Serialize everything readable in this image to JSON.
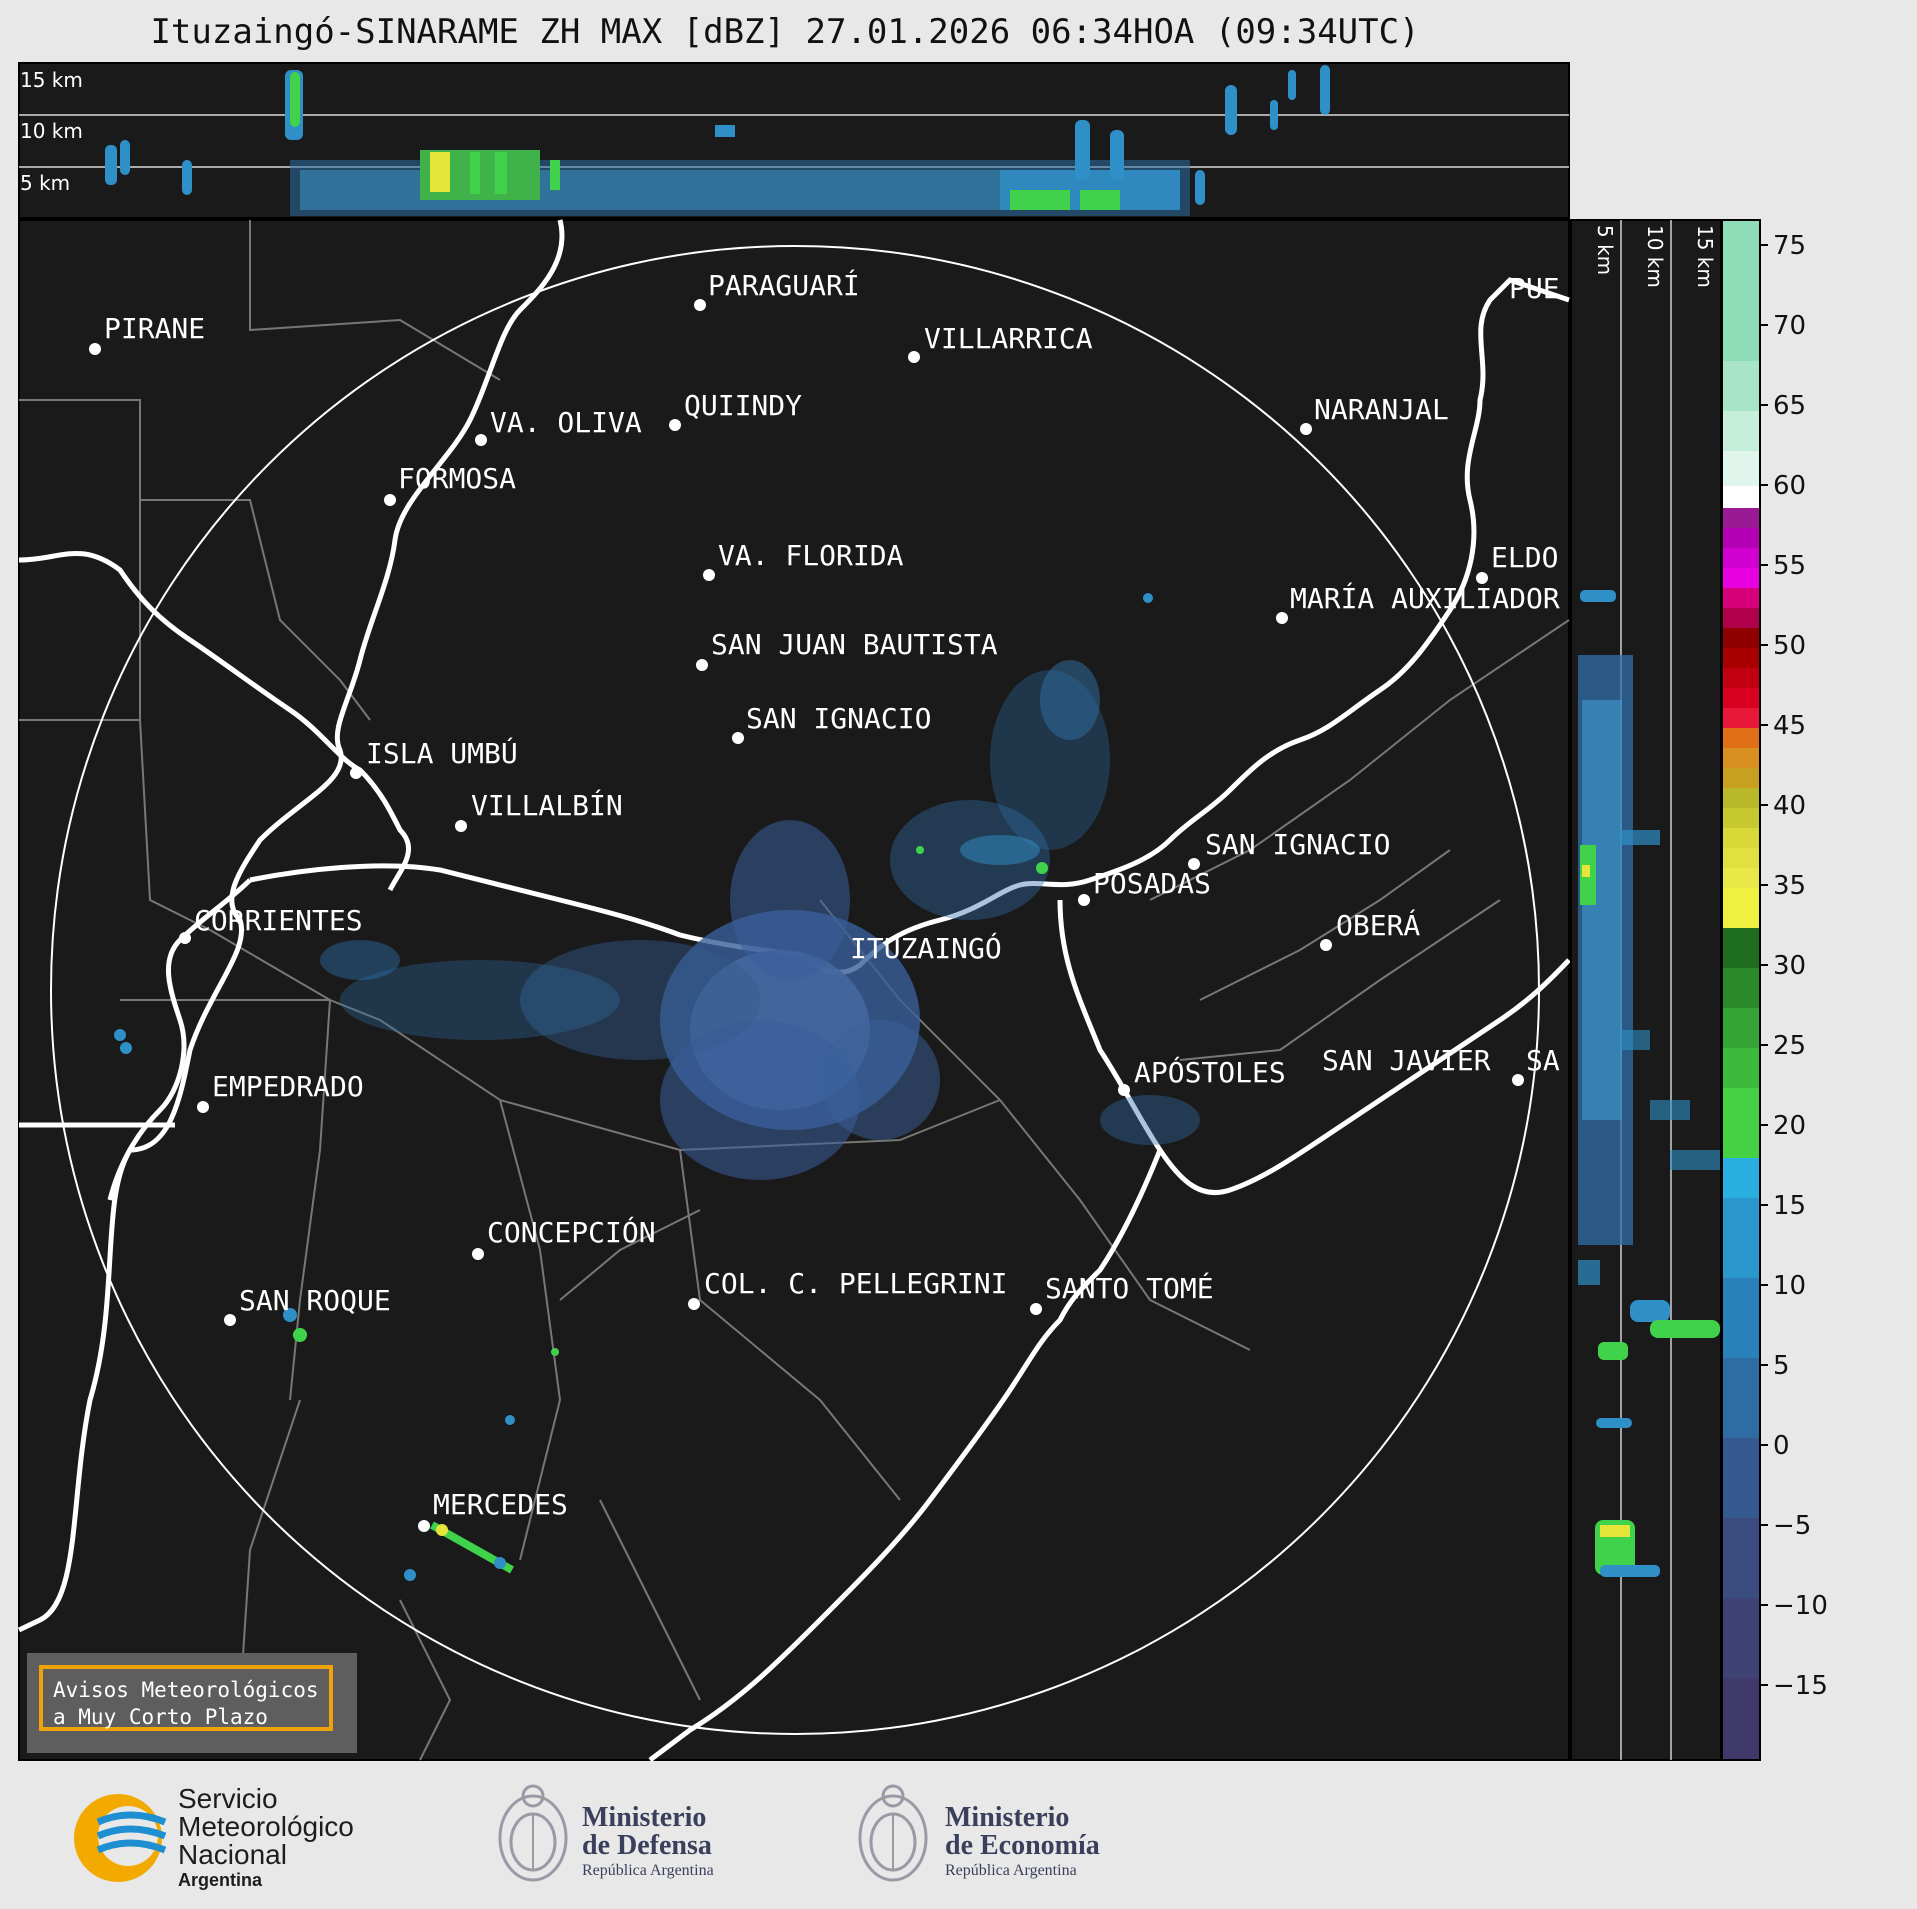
{
  "title": "Ituzaingó-SINARAME ZH MAX [dBZ] 27.01.2026 06:34HOA (09:34UTC)",
  "top_panel": {
    "altitude_labels": [
      "15 km",
      "10 km",
      "5 km"
    ]
  },
  "side_panel": {
    "altitude_labels": [
      "5 km",
      "10 km",
      "15 km"
    ]
  },
  "colorbar": {
    "unit": "dBZ",
    "ticks": [
      "75",
      "70",
      "65",
      "60",
      "55",
      "50",
      "45",
      "40",
      "35",
      "30",
      "25",
      "20",
      "15",
      "10",
      "5",
      "0",
      "−5",
      "−10",
      "−15"
    ],
    "range": [
      -20,
      77
    ]
  },
  "cities": [
    {
      "name": "PARAGUARÍ"
    },
    {
      "name": "PIRANE"
    },
    {
      "name": "VILLARRICA"
    },
    {
      "name": "QUIINDY"
    },
    {
      "name": "VA. OLIVA"
    },
    {
      "name": "NARANJAL"
    },
    {
      "name": "FORMOSA"
    },
    {
      "name": "PUE"
    },
    {
      "name": "VA. FLORIDA"
    },
    {
      "name": "ELDO"
    },
    {
      "name": "MARÍA AUXILIADOR"
    },
    {
      "name": "SAN JUAN BAUTISTA"
    },
    {
      "name": "SAN IGNACIO"
    },
    {
      "name": "ISLA UMBÚ"
    },
    {
      "name": "VILLALBÍN"
    },
    {
      "name": "SAN IGNACIO"
    },
    {
      "name": "POSADAS"
    },
    {
      "name": "CORRIENTES"
    },
    {
      "name": "ITUZAINGÓ"
    },
    {
      "name": "OBERÁ"
    },
    {
      "name": "APÓSTOLES"
    },
    {
      "name": "SAN JAVIER"
    },
    {
      "name": "SA"
    },
    {
      "name": "EMPEDRADO"
    },
    {
      "name": "CONCEPCIÓN"
    },
    {
      "name": "COL. C. PELLEGRINI"
    },
    {
      "name": "SANTO TOMÉ"
    },
    {
      "name": "SAN ROQUE"
    },
    {
      "name": "MERCEDES"
    }
  ],
  "alert_box": {
    "line1": "Avisos Meteorológicos",
    "line2": "a Muy Corto Plazo"
  },
  "logos": {
    "smn": {
      "line1": "Servicio",
      "line2": "Meteorológico",
      "line3": "Nacional",
      "line4": "Argentina"
    },
    "defensa": {
      "line1": "Ministerio",
      "line2": "de Defensa",
      "line3": "República Argentina"
    },
    "economia": {
      "line1": "Ministerio",
      "line2": "de Economía",
      "line3": "República Argentina"
    }
  },
  "colors": {
    "background": "#e8e8e8",
    "panel": "#1a1a1a",
    "accent_border": "#f0a20a"
  }
}
